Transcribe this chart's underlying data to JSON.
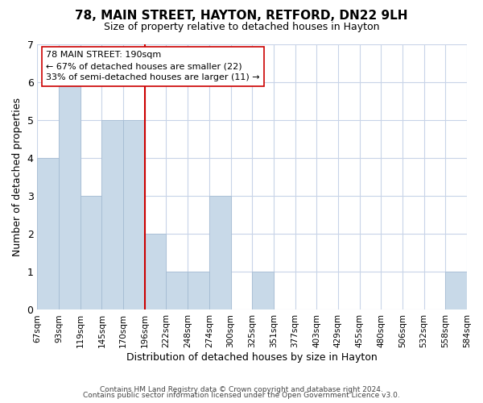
{
  "title": "78, MAIN STREET, HAYTON, RETFORD, DN22 9LH",
  "subtitle": "Size of property relative to detached houses in Hayton",
  "xlabel": "Distribution of detached houses by size in Hayton",
  "ylabel": "Number of detached properties",
  "bin_labels": [
    "67sqm",
    "93sqm",
    "119sqm",
    "145sqm",
    "170sqm",
    "196sqm",
    "222sqm",
    "248sqm",
    "274sqm",
    "300sqm",
    "325sqm",
    "351sqm",
    "377sqm",
    "403sqm",
    "429sqm",
    "455sqm",
    "480sqm",
    "506sqm",
    "532sqm",
    "558sqm",
    "584sqm"
  ],
  "counts": [
    4,
    6,
    3,
    5,
    5,
    2,
    1,
    1,
    3,
    0,
    1,
    0,
    0,
    0,
    0,
    0,
    0,
    0,
    0,
    1
  ],
  "bar_color": "#c8d9e8",
  "bar_edge_color": "#a0b8d0",
  "highlight_line_color": "#cc0000",
  "highlight_line_index": 5,
  "annotation_title": "78 MAIN STREET: 190sqm",
  "annotation_line1": "← 67% of detached houses are smaller (22)",
  "annotation_line2": "33% of semi-detached houses are larger (11) →",
  "annotation_box_facecolor": "#ffffff",
  "annotation_box_edgecolor": "#cc0000",
  "ylim": [
    0,
    7
  ],
  "yticks": [
    0,
    1,
    2,
    3,
    4,
    5,
    6,
    7
  ],
  "footer1": "Contains HM Land Registry data © Crown copyright and database right 2024.",
  "footer2": "Contains public sector information licensed under the Open Government Licence v3.0."
}
